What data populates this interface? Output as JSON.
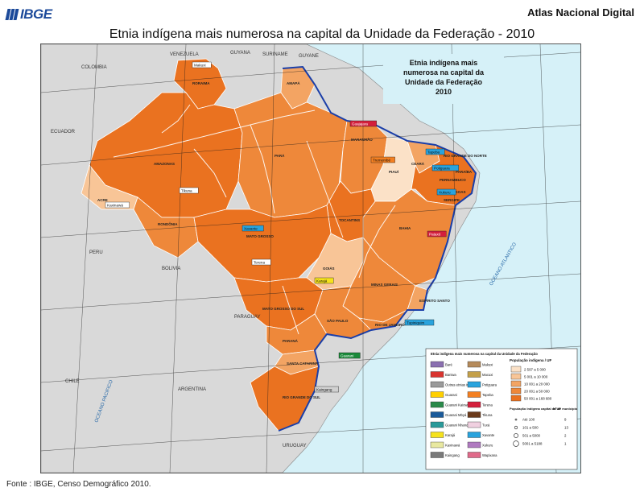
{
  "header": {
    "logo_text": "IBGE",
    "atlas": "Atlas Nacional Digital",
    "title": "Etnia indígena mais numerosa na capital da Unidade da Federação  - 2010"
  },
  "footer": {
    "source": "Fonte : IBGE, Censo Demográfico 2010."
  },
  "map": {
    "inset_title": [
      "Etnia indígena mais",
      "numerosa na capital da",
      "Unidade da Federação",
      "2010"
    ],
    "colors": {
      "ocean": "#d6f1f8",
      "foreign": "#d9d9d9",
      "light": "#fbe1c7",
      "c2": "#f8c597",
      "c3": "#f3a463",
      "c4": "#ee883a",
      "c5": "#ea7220",
      "river": "#ffffff",
      "coast": "#1a3ea8"
    },
    "country_labels": [
      "VENEZUELA",
      "GUYANA",
      "SURINAME",
      "GUYANE",
      "COLOMBIA",
      "ECUADOR",
      "PERU",
      "BOLIVIA",
      "CHILE",
      "PARAGUAY",
      "ARGENTINA",
      "URUGUAY"
    ],
    "ocean_labels": [
      "OCEANO PACIFICO",
      "OCEANO ATLANTICO"
    ],
    "state_labels": [
      "RORAIMA",
      "AMAPÁ",
      "AMAZONAS",
      "PARÁ",
      "MARANHÃO",
      "CEARÁ",
      "RIO GRANDE DO NORTE",
      "PARAÍBA",
      "PERNAMBUCO",
      "ALAGOAS",
      "SERGIPE",
      "PIAUÍ",
      "ACRE",
      "RONDÔNIA",
      "MATO GROSSO",
      "TOCANTINS",
      "BAHIA",
      "GOIÁS",
      "MINAS GERAIS",
      "ESPÍRITO SANTO",
      "MATO GROSSO DO SUL",
      "SÃO PAULO",
      "RIO DE JANEIRO",
      "PARANÁ",
      "SANTA CATARINA",
      "RIO GRANDE DO SUL"
    ],
    "capital_tags": [
      {
        "label": "Makuxi",
        "color": "#ffffff"
      },
      {
        "label": "Tikuna",
        "color": "#ffffff"
      },
      {
        "label": "Kaxinawá",
        "color": "#ffffff"
      },
      {
        "label": "Terena",
        "color": "#ffffff"
      },
      {
        "label": "Guajajara",
        "color": "#d41f3c"
      },
      {
        "label": "Tremembé",
        "color": "#f37f21"
      },
      {
        "label": "Tapeba",
        "color": "#29a3dd"
      },
      {
        "label": "Potiguara",
        "color": "#29a3dd"
      },
      {
        "label": "Xukuru",
        "color": "#29a3dd"
      },
      {
        "label": "Pataxó",
        "color": "#d41f3c"
      },
      {
        "label": "Xavante",
        "color": "#29a3dd"
      },
      {
        "label": "Karajá",
        "color": "#f5e21c"
      },
      {
        "label": "Guarani",
        "color": "#1a8a3a"
      },
      {
        "label": "Tupiniquim",
        "color": "#29a3dd"
      },
      {
        "label": "Kaingang",
        "color": "#d0d0d0"
      }
    ],
    "legend": {
      "title": "Etnia indígena mais numerosa na capital da Unidade da Federação",
      "left_items": [
        {
          "label": "Baré",
          "color": "#8a6fb0"
        },
        {
          "label": "Baniwa",
          "color": "#d9342f"
        },
        {
          "label": "Outras etnias indígenas",
          "color": "#9a9a9a"
        },
        {
          "label": "Guarani",
          "color": "#ffd000"
        },
        {
          "label": "Guarani Kaiowá",
          "color": "#2a8a4a"
        },
        {
          "label": "Guarani Mbyá",
          "color": "#1a5a9a"
        },
        {
          "label": "Guarani Nhandeva",
          "color": "#2a9a9a"
        },
        {
          "label": "Karajá",
          "color": "#f5e21c"
        },
        {
          "label": "Kaxinawá",
          "color": "#e8e8a0"
        },
        {
          "label": "Kaingang",
          "color": "#7a7a7a"
        }
      ],
      "right_items": [
        {
          "label": "Makuxi",
          "color": "#b58a5a"
        },
        {
          "label": "Macuxi",
          "color": "#c4a04a"
        },
        {
          "label": "Potiguara",
          "color": "#29a3dd"
        },
        {
          "label": "Tapeba",
          "color": "#f37f21"
        },
        {
          "label": "Terena",
          "color": "#d41f3c"
        },
        {
          "label": "Tikuna",
          "color": "#6b3a1a"
        },
        {
          "label": "Tuxá",
          "color": "#f0d0e0"
        },
        {
          "label": "Xavante",
          "color": "#29a3dd"
        },
        {
          "label": "Xukuru",
          "color": "#b07ac0"
        },
        {
          "label": "Wapixana",
          "color": "#e06a8a"
        }
      ],
      "pop_title": "População indígena / UF",
      "pop_classes": [
        {
          "label": "2 597 a 5 000",
          "color": "#fbe1c7"
        },
        {
          "label": "5 001 a 10 000",
          "color": "#f8c597"
        },
        {
          "label": "10 001 a 20 000",
          "color": "#f3a463"
        },
        {
          "label": "20 001 a 50 000",
          "color": "#ee883a"
        },
        {
          "label": "50 001 a 168 680",
          "color": "#ea7220"
        }
      ],
      "cap_title": "População indígena capital da UF",
      "cap_col": "Nº de município",
      "cap_classes": [
        {
          "label": "Até 100",
          "n": "9"
        },
        {
          "label": "101 a 500",
          "n": "13"
        },
        {
          "label": "501 a 5000",
          "n": "2"
        },
        {
          "label": "5001 a 5188",
          "n": "1"
        }
      ]
    }
  }
}
